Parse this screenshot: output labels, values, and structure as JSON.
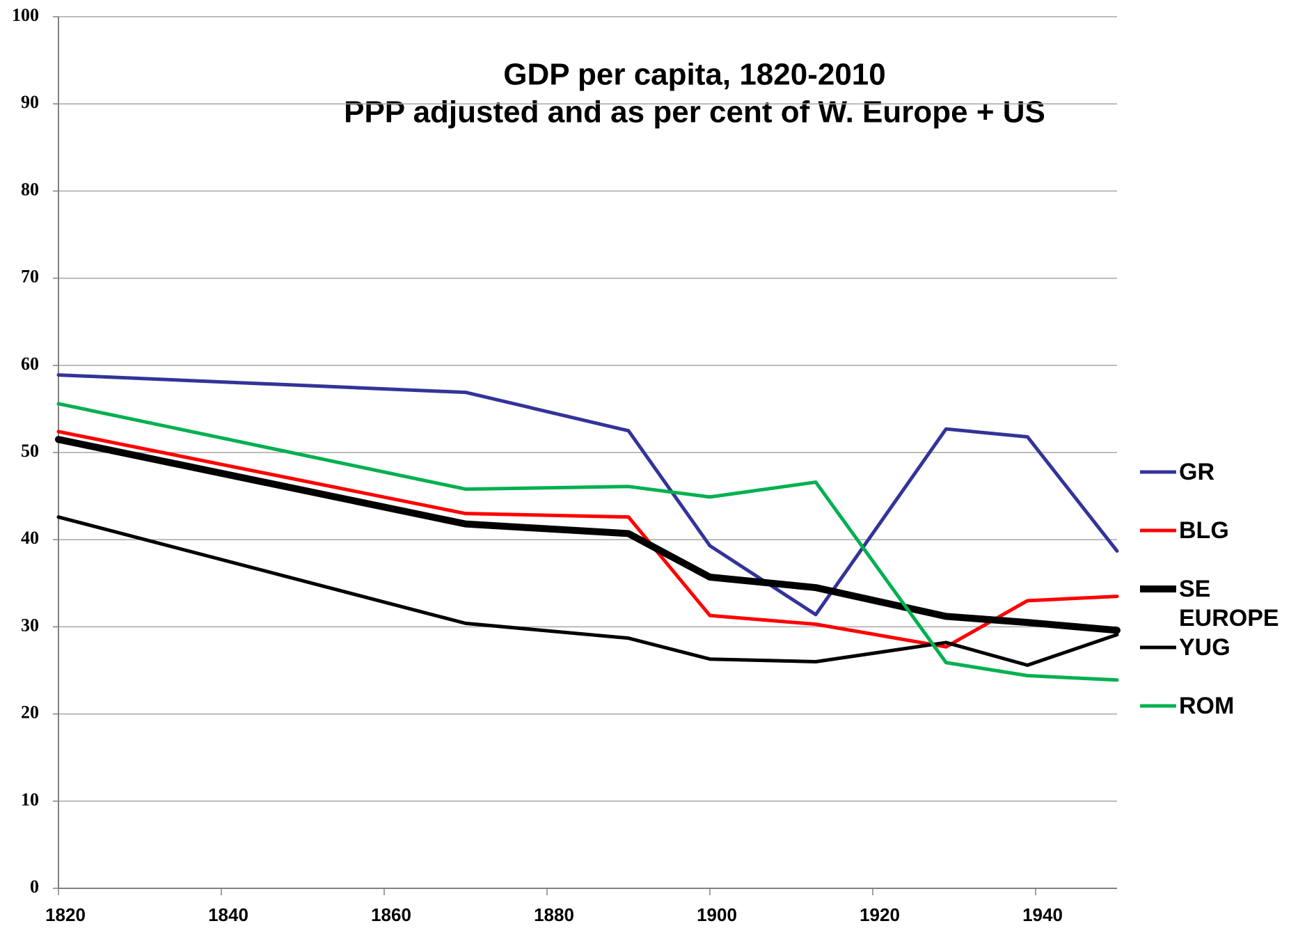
{
  "chart_data": {
    "type": "line",
    "title": "GDP per capita, 1820-2010",
    "subtitle": "PPP adjusted and as per cent of W. Europe + US",
    "x": [
      1820,
      1870,
      1890,
      1900,
      1913,
      1929,
      1939,
      1950
    ],
    "series": [
      {
        "name": "GR",
        "color": "#333399",
        "width": 5,
        "values": [
          58.9,
          56.9,
          52.5,
          39.3,
          31.4,
          52.7,
          51.8,
          38.7
        ]
      },
      {
        "name": "BLG",
        "color": "#ff0000",
        "width": 5,
        "values": [
          52.4,
          43.0,
          42.6,
          31.3,
          30.3,
          27.7,
          33.0,
          33.5
        ]
      },
      {
        "name": "SE EUROPE",
        "color": "#000000",
        "width": 10,
        "values": [
          51.5,
          41.8,
          40.7,
          35.7,
          34.5,
          31.2,
          30.5,
          29.6
        ]
      },
      {
        "name": "YUG",
        "color": "#000000",
        "width": 5,
        "values": [
          42.6,
          30.4,
          28.7,
          26.3,
          26.0,
          28.2,
          25.6,
          29.1
        ]
      },
      {
        "name": "ROM",
        "color": "#00b050",
        "width": 5,
        "values": [
          55.6,
          45.8,
          46.1,
          44.9,
          46.6,
          25.9,
          24.4,
          23.9
        ]
      }
    ],
    "xlim": [
      1820,
      1950
    ],
    "xticks": [
      1820,
      1840,
      1860,
      1880,
      1900,
      1920,
      1940
    ],
    "ylim": [
      0,
      100
    ],
    "yticks": [
      0,
      10,
      20,
      30,
      40,
      50,
      60,
      70,
      80,
      90,
      100
    ],
    "grid": true,
    "legend": "right"
  }
}
